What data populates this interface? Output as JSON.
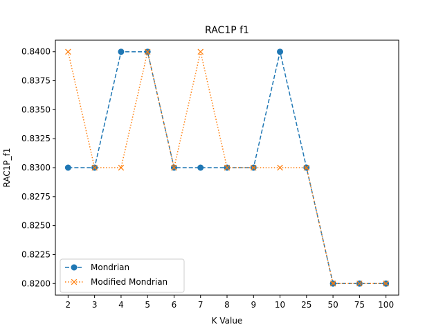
{
  "chart_data": {
    "type": "line",
    "title": "RAC1P f1",
    "xlabel": "K Value",
    "ylabel": "RAC1P_f1",
    "categories": [
      "2",
      "3",
      "4",
      "5",
      "6",
      "7",
      "8",
      "9",
      "10",
      "25",
      "50",
      "75",
      "100"
    ],
    "ylim": [
      0.819,
      0.841
    ],
    "yticks": [
      "0.8200",
      "0.8225",
      "0.8250",
      "0.8275",
      "0.8300",
      "0.8325",
      "0.8350",
      "0.8375",
      "0.8400"
    ],
    "grid": false,
    "legend_position": "lower-left",
    "series": [
      {
        "name": "Mondrian",
        "values": [
          0.83,
          0.83,
          0.84,
          0.84,
          0.83,
          0.83,
          0.83,
          0.83,
          0.84,
          0.83,
          0.82,
          0.82,
          0.82
        ],
        "color": "#1f77b4",
        "line_style": "dashed",
        "marker": "circle"
      },
      {
        "name": "Modified Mondrian",
        "values": [
          0.84,
          0.83,
          0.83,
          0.84,
          0.83,
          0.84,
          0.83,
          0.83,
          0.83,
          0.83,
          0.82,
          0.82,
          0.82
        ],
        "color": "#ff7f0e",
        "line_style": "dotted",
        "marker": "x"
      }
    ]
  }
}
